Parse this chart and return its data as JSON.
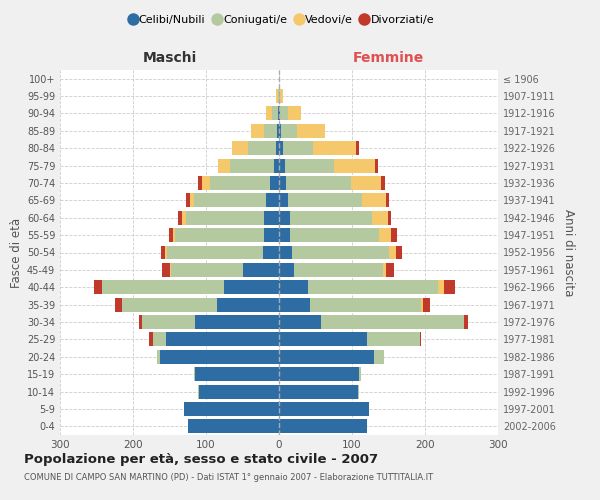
{
  "age_groups": [
    "0-4",
    "5-9",
    "10-14",
    "15-19",
    "20-24",
    "25-29",
    "30-34",
    "35-39",
    "40-44",
    "45-49",
    "50-54",
    "55-59",
    "60-64",
    "65-69",
    "70-74",
    "75-79",
    "80-84",
    "85-89",
    "90-94",
    "95-99",
    "100+"
  ],
  "birth_years": [
    "2002-2006",
    "1997-2001",
    "1992-1996",
    "1987-1991",
    "1982-1986",
    "1977-1981",
    "1972-1976",
    "1967-1971",
    "1962-1966",
    "1957-1961",
    "1952-1956",
    "1947-1951",
    "1942-1946",
    "1937-1941",
    "1932-1936",
    "1927-1931",
    "1922-1926",
    "1917-1921",
    "1912-1916",
    "1907-1911",
    "≤ 1906"
  ],
  "males_celibe": [
    125,
    130,
    110,
    115,
    163,
    155,
    115,
    85,
    75,
    50,
    22,
    20,
    20,
    18,
    12,
    7,
    4,
    3,
    2,
    0,
    0
  ],
  "males_coniugato": [
    0,
    0,
    1,
    1,
    4,
    18,
    72,
    130,
    168,
    98,
    132,
    122,
    108,
    98,
    82,
    60,
    38,
    18,
    8,
    2,
    0
  ],
  "males_vedovo": [
    0,
    0,
    0,
    0,
    0,
    0,
    0,
    0,
    0,
    2,
    2,
    3,
    5,
    6,
    12,
    16,
    22,
    18,
    8,
    2,
    0
  ],
  "males_divorziato": [
    0,
    0,
    0,
    0,
    0,
    5,
    5,
    10,
    10,
    10,
    5,
    5,
    5,
    5,
    5,
    1,
    0,
    0,
    0,
    0,
    0
  ],
  "females_nubile": [
    120,
    123,
    108,
    110,
    130,
    120,
    58,
    42,
    40,
    20,
    18,
    15,
    15,
    12,
    10,
    8,
    5,
    3,
    2,
    0,
    0
  ],
  "females_coniugata": [
    0,
    0,
    2,
    2,
    14,
    73,
    196,
    152,
    178,
    122,
    132,
    122,
    112,
    102,
    88,
    68,
    42,
    22,
    10,
    2,
    0
  ],
  "females_vedova": [
    0,
    0,
    0,
    0,
    0,
    0,
    0,
    3,
    8,
    5,
    10,
    16,
    22,
    32,
    42,
    55,
    58,
    38,
    18,
    3,
    0
  ],
  "females_divorziata": [
    0,
    0,
    0,
    0,
    0,
    2,
    5,
    10,
    15,
    10,
    8,
    8,
    5,
    5,
    5,
    5,
    5,
    0,
    0,
    0,
    0
  ],
  "colors": {
    "celibe": "#2E6DA4",
    "coniugato": "#b5c9a0",
    "vedovo": "#f5c96b",
    "divorziato": "#c0392b"
  },
  "xlim": 300,
  "title": "Popolazione per età, sesso e stato civile - 2007",
  "subtitle": "COMUNE DI CAMPO SAN MARTINO (PD) - Dati ISTAT 1° gennaio 2007 - Elaborazione TUTTITALIA.IT",
  "ylabel_left": "Fasce di età",
  "ylabel_right": "Anni di nascita",
  "xlabel_left": "Maschi",
  "xlabel_right": "Femmine",
  "legend_labels": [
    "Celibi/Nubili",
    "Coniugati/e",
    "Vedovi/e",
    "Divorziati/e"
  ],
  "bg_color": "#f0f0f0",
  "plot_bg": "#ffffff"
}
